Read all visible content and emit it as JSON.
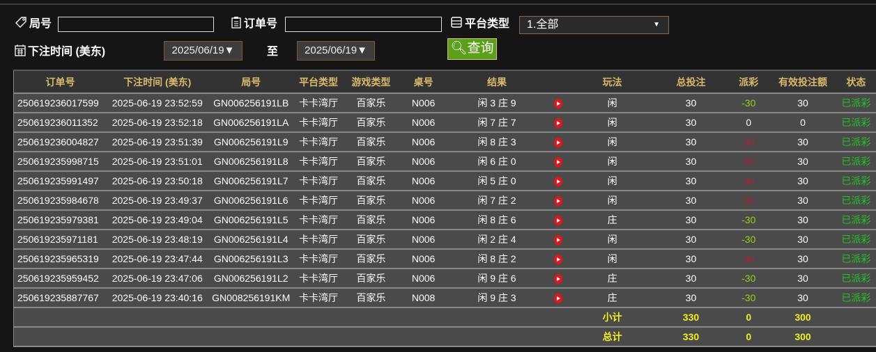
{
  "filters": {
    "round_label": "局号",
    "round_value": "",
    "order_label": "订单号",
    "order_value": "",
    "platform_label": "平台类型",
    "platform_selected": "1.全部",
    "time_label": "下注时间 (美东)",
    "date_from": "2025/06/19▼",
    "to_label": "至",
    "date_to": "2025/06/19▼",
    "query_label": "查询"
  },
  "colors": {
    "header_text": "#d8b96c",
    "loss": "#8fd418",
    "win": "#b02030",
    "status": "#22c322",
    "total": "#f0f020",
    "query_button": "#5aa01a"
  },
  "table": {
    "headers": [
      "订单号",
      "下注时间 (美东)",
      "局号",
      "平台类型",
      "游戏类型",
      "桌号",
      "结果",
      "",
      "玩法",
      "总投注",
      "派彩",
      "有效投注额",
      "状态"
    ],
    "rows": [
      {
        "order": "250619236017599",
        "time": "2025-06-19 23:52:59",
        "round": "GN006256191LB",
        "platform": "卡卡湾厅",
        "game": "百家乐",
        "table": "N006",
        "result": "闲 3 庄 9",
        "play": "闲",
        "bet": "30",
        "payout": "-30",
        "valid": "30",
        "status": "已派彩"
      },
      {
        "order": "250619236011352",
        "time": "2025-06-19 23:52:18",
        "round": "GN006256191LA",
        "platform": "卡卡湾厅",
        "game": "百家乐",
        "table": "N006",
        "result": "闲 7 庄 7",
        "play": "闲",
        "bet": "30",
        "payout": "0",
        "valid": "0",
        "status": "已派彩"
      },
      {
        "order": "250619236004827",
        "time": "2025-06-19 23:51:39",
        "round": "GN006256191L9",
        "platform": "卡卡湾厅",
        "game": "百家乐",
        "table": "N006",
        "result": "闲 8 庄 3",
        "play": "闲",
        "bet": "30",
        "payout": "30",
        "valid": "30",
        "status": "已派彩"
      },
      {
        "order": "250619235998715",
        "time": "2025-06-19 23:51:01",
        "round": "GN006256191L8",
        "platform": "卡卡湾厅",
        "game": "百家乐",
        "table": "N006",
        "result": "闲 6 庄 0",
        "play": "闲",
        "bet": "30",
        "payout": "30",
        "valid": "30",
        "status": "已派彩"
      },
      {
        "order": "250619235991497",
        "time": "2025-06-19 23:50:18",
        "round": "GN006256191L7",
        "platform": "卡卡湾厅",
        "game": "百家乐",
        "table": "N006",
        "result": "闲 5 庄 0",
        "play": "闲",
        "bet": "30",
        "payout": "30",
        "valid": "30",
        "status": "已派彩"
      },
      {
        "order": "250619235984678",
        "time": "2025-06-19 23:49:37",
        "round": "GN006256191L6",
        "platform": "卡卡湾厅",
        "game": "百家乐",
        "table": "N006",
        "result": "闲 7 庄 2",
        "play": "闲",
        "bet": "30",
        "payout": "30",
        "valid": "30",
        "status": "已派彩"
      },
      {
        "order": "250619235979381",
        "time": "2025-06-19 23:49:04",
        "round": "GN006256191L5",
        "platform": "卡卡湾厅",
        "game": "百家乐",
        "table": "N006",
        "result": "闲 8 庄 6",
        "play": "庄",
        "bet": "30",
        "payout": "-30",
        "valid": "30",
        "status": "已派彩"
      },
      {
        "order": "250619235971181",
        "time": "2025-06-19 23:48:19",
        "round": "GN006256191L4",
        "platform": "卡卡湾厅",
        "game": "百家乐",
        "table": "N006",
        "result": "闲 2 庄 4",
        "play": "闲",
        "bet": "30",
        "payout": "-30",
        "valid": "30",
        "status": "已派彩"
      },
      {
        "order": "250619235965319",
        "time": "2025-06-19 23:47:44",
        "round": "GN006256191L3",
        "platform": "卡卡湾厅",
        "game": "百家乐",
        "table": "N006",
        "result": "闲 8 庄 2",
        "play": "闲",
        "bet": "30",
        "payout": "30",
        "valid": "30",
        "status": "已派彩"
      },
      {
        "order": "250619235959452",
        "time": "2025-06-19 23:47:06",
        "round": "GN006256191L2",
        "platform": "卡卡湾厅",
        "game": "百家乐",
        "table": "N006",
        "result": "闲 9 庄 6",
        "play": "庄",
        "bet": "30",
        "payout": "-30",
        "valid": "30",
        "status": "已派彩"
      },
      {
        "order": "250619235887767",
        "time": "2025-06-19 23:40:16",
        "round": "GN008256191KM",
        "platform": "卡卡湾厅",
        "game": "百家乐",
        "table": "N008",
        "result": "闲 9 庄 3",
        "play": "庄",
        "bet": "30",
        "payout": "-30",
        "valid": "30",
        "status": "已派彩"
      }
    ],
    "subtotal": {
      "label": "小计",
      "bet": "330",
      "payout": "0",
      "valid": "300"
    },
    "total": {
      "label": "总计",
      "bet": "330",
      "payout": "0",
      "valid": "300"
    }
  }
}
